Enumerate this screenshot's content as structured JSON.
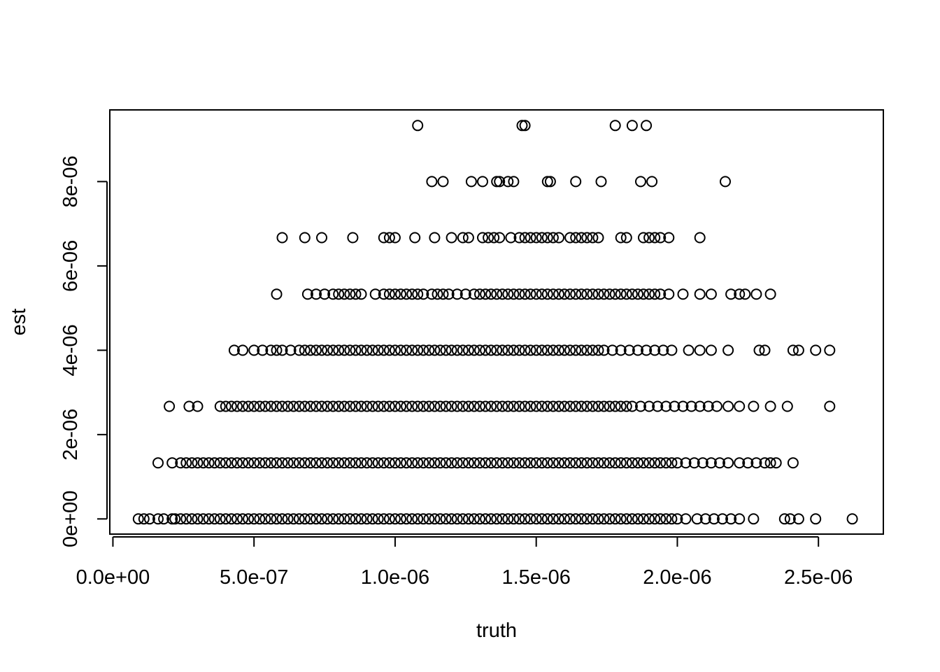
{
  "chart_data": {
    "type": "scatter",
    "title": "",
    "xlabel": "truth",
    "ylabel": "est",
    "xlim": [
      -1.1e-08,
      2.73e-06
    ],
    "ylim": [
      -3.6e-07,
      9.7e-06
    ],
    "x_ticks": [
      0,
      5e-07,
      1e-06,
      1.5e-06,
      2e-06,
      2.5e-06
    ],
    "x_tick_labels": [
      "0.0e+00",
      "5.0e-07",
      "1.0e-06",
      "1.5e-06",
      "2.0e-06",
      "2.5e-06"
    ],
    "y_ticks": [
      0,
      2e-06,
      4e-06,
      6e-06,
      8e-06
    ],
    "y_tick_labels": [
      "0e+00",
      "2e-06",
      "4e-06",
      "6e-06",
      "8e-06"
    ],
    "marker": "open-circle",
    "grid": false,
    "legend": "none",
    "series": [
      {
        "levels": [
          {
            "y": 0,
            "x": [
              9e-08,
              1.1e-07,
              1.3e-07,
              1.6e-07,
              1.8e-07,
              2.1e-07,
              2.2e-07,
              2.4e-07,
              2.6e-07,
              2.8e-07,
              3e-07,
              3.2e-07,
              3.4e-07,
              3.6e-07,
              3.8e-07,
              4e-07,
              4.2e-07,
              4.4e-07,
              4.6e-07,
              4.8e-07,
              5e-07,
              5.2e-07,
              5.4e-07,
              5.6e-07,
              5.8e-07,
              6e-07,
              6.2e-07,
              6.4e-07,
              6.6e-07,
              6.8e-07,
              7e-07,
              7.2e-07,
              7.4e-07,
              7.6e-07,
              7.8e-07,
              8e-07,
              8.2e-07,
              8.4e-07,
              8.6e-07,
              8.8e-07,
              9e-07,
              9.2e-07,
              9.4e-07,
              9.6e-07,
              9.8e-07,
              1e-06,
              1.02e-06,
              1.04e-06,
              1.06e-06,
              1.08e-06,
              1.1e-06,
              1.12e-06,
              1.14e-06,
              1.16e-06,
              1.18e-06,
              1.2e-06,
              1.22e-06,
              1.24e-06,
              1.26e-06,
              1.28e-06,
              1.3e-06,
              1.32e-06,
              1.34e-06,
              1.36e-06,
              1.38e-06,
              1.4e-06,
              1.42e-06,
              1.44e-06,
              1.46e-06,
              1.48e-06,
              1.5e-06,
              1.52e-06,
              1.54e-06,
              1.56e-06,
              1.58e-06,
              1.6e-06,
              1.62e-06,
              1.64e-06,
              1.66e-06,
              1.68e-06,
              1.7e-06,
              1.72e-06,
              1.74e-06,
              1.76e-06,
              1.78e-06,
              1.8e-06,
              1.82e-06,
              1.84e-06,
              1.86e-06,
              1.88e-06,
              1.9e-06,
              1.92e-06,
              1.94e-06,
              1.96e-06,
              1.98e-06,
              2e-06,
              2.03e-06,
              2.07e-06,
              2.1e-06,
              2.13e-06,
              2.16e-06,
              2.19e-06,
              2.22e-06,
              2.27e-06,
              2.38e-06,
              2.4e-06,
              2.43e-06,
              2.49e-06,
              2.62e-06
            ]
          },
          {
            "y": 1.33e-06,
            "x": [
              1.6e-07,
              2.1e-07,
              2.4e-07,
              2.6e-07,
              2.8e-07,
              3e-07,
              3.2e-07,
              3.4e-07,
              3.6e-07,
              3.8e-07,
              4e-07,
              4.2e-07,
              4.4e-07,
              4.6e-07,
              4.8e-07,
              5e-07,
              5.2e-07,
              5.4e-07,
              5.6e-07,
              5.8e-07,
              6e-07,
              6.2e-07,
              6.4e-07,
              6.6e-07,
              6.8e-07,
              7e-07,
              7.2e-07,
              7.4e-07,
              7.6e-07,
              7.8e-07,
              8e-07,
              8.2e-07,
              8.4e-07,
              8.6e-07,
              8.8e-07,
              9e-07,
              9.2e-07,
              9.4e-07,
              9.6e-07,
              9.8e-07,
              1e-06,
              1.02e-06,
              1.04e-06,
              1.06e-06,
              1.08e-06,
              1.1e-06,
              1.12e-06,
              1.14e-06,
              1.16e-06,
              1.18e-06,
              1.2e-06,
              1.22e-06,
              1.24e-06,
              1.26e-06,
              1.28e-06,
              1.3e-06,
              1.32e-06,
              1.34e-06,
              1.36e-06,
              1.38e-06,
              1.4e-06,
              1.42e-06,
              1.44e-06,
              1.46e-06,
              1.48e-06,
              1.5e-06,
              1.52e-06,
              1.54e-06,
              1.56e-06,
              1.58e-06,
              1.6e-06,
              1.62e-06,
              1.64e-06,
              1.66e-06,
              1.68e-06,
              1.7e-06,
              1.72e-06,
              1.74e-06,
              1.76e-06,
              1.78e-06,
              1.8e-06,
              1.82e-06,
              1.84e-06,
              1.86e-06,
              1.88e-06,
              1.9e-06,
              1.92e-06,
              1.94e-06,
              1.96e-06,
              1.98e-06,
              2e-06,
              2.03e-06,
              2.06e-06,
              2.09e-06,
              2.12e-06,
              2.15e-06,
              2.18e-06,
              2.22e-06,
              2.25e-06,
              2.28e-06,
              2.31e-06,
              2.33e-06,
              2.35e-06,
              2.41e-06
            ]
          },
          {
            "y": 2.67e-06,
            "x": [
              2e-07,
              2.7e-07,
              3e-07,
              3.8e-07,
              4e-07,
              4.2e-07,
              4.4e-07,
              4.6e-07,
              4.8e-07,
              5e-07,
              5.2e-07,
              5.4e-07,
              5.6e-07,
              5.8e-07,
              6e-07,
              6.2e-07,
              6.4e-07,
              6.6e-07,
              6.8e-07,
              7e-07,
              7.2e-07,
              7.4e-07,
              7.6e-07,
              7.8e-07,
              8e-07,
              8.2e-07,
              8.4e-07,
              8.6e-07,
              8.8e-07,
              9e-07,
              9.2e-07,
              9.4e-07,
              9.6e-07,
              9.8e-07,
              1e-06,
              1.02e-06,
              1.04e-06,
              1.06e-06,
              1.08e-06,
              1.1e-06,
              1.12e-06,
              1.14e-06,
              1.16e-06,
              1.18e-06,
              1.2e-06,
              1.22e-06,
              1.24e-06,
              1.26e-06,
              1.28e-06,
              1.3e-06,
              1.32e-06,
              1.34e-06,
              1.36e-06,
              1.38e-06,
              1.4e-06,
              1.42e-06,
              1.44e-06,
              1.46e-06,
              1.48e-06,
              1.5e-06,
              1.52e-06,
              1.54e-06,
              1.56e-06,
              1.58e-06,
              1.6e-06,
              1.62e-06,
              1.64e-06,
              1.66e-06,
              1.68e-06,
              1.7e-06,
              1.72e-06,
              1.74e-06,
              1.76e-06,
              1.78e-06,
              1.8e-06,
              1.82e-06,
              1.84e-06,
              1.87e-06,
              1.9e-06,
              1.93e-06,
              1.96e-06,
              1.99e-06,
              2.02e-06,
              2.05e-06,
              2.08e-06,
              2.11e-06,
              2.14e-06,
              2.18e-06,
              2.22e-06,
              2.27e-06,
              2.33e-06,
              2.39e-06,
              2.54e-06
            ]
          },
          {
            "y": 4e-06,
            "x": [
              4.3e-07,
              4.6e-07,
              5e-07,
              5.3e-07,
              5.6e-07,
              5.8e-07,
              6e-07,
              6.3e-07,
              6.6e-07,
              6.8e-07,
              7e-07,
              7.2e-07,
              7.4e-07,
              7.6e-07,
              7.8e-07,
              8e-07,
              8.2e-07,
              8.4e-07,
              8.6e-07,
              8.8e-07,
              9e-07,
              9.2e-07,
              9.4e-07,
              9.6e-07,
              9.8e-07,
              1e-06,
              1.02e-06,
              1.04e-06,
              1.06e-06,
              1.08e-06,
              1.1e-06,
              1.12e-06,
              1.14e-06,
              1.16e-06,
              1.18e-06,
              1.2e-06,
              1.22e-06,
              1.24e-06,
              1.26e-06,
              1.28e-06,
              1.3e-06,
              1.32e-06,
              1.34e-06,
              1.36e-06,
              1.38e-06,
              1.4e-06,
              1.42e-06,
              1.44e-06,
              1.46e-06,
              1.48e-06,
              1.5e-06,
              1.52e-06,
              1.54e-06,
              1.56e-06,
              1.58e-06,
              1.6e-06,
              1.62e-06,
              1.64e-06,
              1.66e-06,
              1.68e-06,
              1.7e-06,
              1.72e-06,
              1.74e-06,
              1.77e-06,
              1.8e-06,
              1.83e-06,
              1.86e-06,
              1.89e-06,
              1.92e-06,
              1.95e-06,
              1.98e-06,
              2.04e-06,
              2.08e-06,
              2.12e-06,
              2.18e-06,
              2.29e-06,
              2.31e-06,
              2.41e-06,
              2.43e-06,
              2.49e-06,
              2.54e-06
            ]
          },
          {
            "y": 5.33e-06,
            "x": [
              5.8e-07,
              6.9e-07,
              7.2e-07,
              7.5e-07,
              7.8e-07,
              8e-07,
              8.2e-07,
              8.4e-07,
              8.6e-07,
              8.8e-07,
              9.3e-07,
              9.6e-07,
              9.8e-07,
              1e-06,
              1.02e-06,
              1.04e-06,
              1.06e-06,
              1.08e-06,
              1.1e-06,
              1.13e-06,
              1.15e-06,
              1.17e-06,
              1.19e-06,
              1.22e-06,
              1.25e-06,
              1.28e-06,
              1.3e-06,
              1.32e-06,
              1.34e-06,
              1.36e-06,
              1.38e-06,
              1.4e-06,
              1.42e-06,
              1.44e-06,
              1.46e-06,
              1.48e-06,
              1.5e-06,
              1.52e-06,
              1.54e-06,
              1.56e-06,
              1.58e-06,
              1.6e-06,
              1.62e-06,
              1.64e-06,
              1.66e-06,
              1.68e-06,
              1.7e-06,
              1.72e-06,
              1.74e-06,
              1.76e-06,
              1.78e-06,
              1.8e-06,
              1.82e-06,
              1.84e-06,
              1.86e-06,
              1.88e-06,
              1.9e-06,
              1.92e-06,
              1.94e-06,
              1.97e-06,
              2.02e-06,
              2.08e-06,
              2.12e-06,
              2.19e-06,
              2.22e-06,
              2.24e-06,
              2.28e-06,
              2.33e-06
            ]
          },
          {
            "y": 6.67e-06,
            "x": [
              6e-07,
              6.8e-07,
              7.4e-07,
              8.5e-07,
              9.6e-07,
              9.8e-07,
              1e-06,
              1.07e-06,
              1.14e-06,
              1.2e-06,
              1.24e-06,
              1.26e-06,
              1.31e-06,
              1.33e-06,
              1.35e-06,
              1.37e-06,
              1.41e-06,
              1.44e-06,
              1.46e-06,
              1.48e-06,
              1.5e-06,
              1.52e-06,
              1.54e-06,
              1.56e-06,
              1.58e-06,
              1.62e-06,
              1.64e-06,
              1.66e-06,
              1.68e-06,
              1.7e-06,
              1.72e-06,
              1.8e-06,
              1.82e-06,
              1.88e-06,
              1.9e-06,
              1.92e-06,
              1.94e-06,
              1.97e-06,
              2.08e-06
            ]
          },
          {
            "y": 8e-06,
            "x": [
              1.13e-06,
              1.17e-06,
              1.27e-06,
              1.31e-06,
              1.36e-06,
              1.37e-06,
              1.4e-06,
              1.42e-06,
              1.54e-06,
              1.55e-06,
              1.64e-06,
              1.73e-06,
              1.87e-06,
              1.91e-06,
              2.17e-06
            ]
          },
          {
            "y": 9.33e-06,
            "x": [
              1.08e-06,
              1.45e-06,
              1.46e-06,
              1.78e-06,
              1.84e-06,
              1.89e-06
            ]
          }
        ]
      }
    ]
  }
}
